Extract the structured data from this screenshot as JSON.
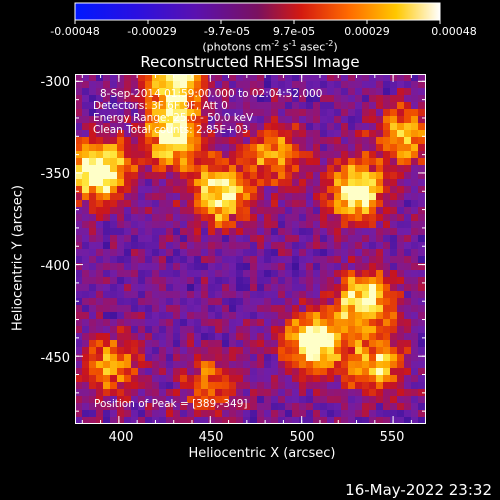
{
  "colorbar": {
    "tick_labels": [
      "-0.00048",
      "-0.00029",
      "-9.7e-05",
      "9.7e-05",
      "0.00029",
      "0.00048"
    ],
    "unit_prefix": "(photons cm",
    "unit_exp1": "-2",
    "unit_mid1": " s",
    "unit_exp2": "-1",
    "unit_mid2": " asec",
    "unit_exp3": "-2",
    "unit_suffix": ")"
  },
  "plot": {
    "title": "Reconstructed RHESSI Image",
    "info_lines": [
      "8-Sep-2014 01:59:00.000 to 02:04:52.000",
      "Detectors: 3F 6F 9F, Att 0",
      "Energy Range: 25.0 - 50.0 keV",
      "Clean    Total counts: 2.85E+03"
    ],
    "peak_label": "Position of Peak = [389,-349]"
  },
  "chart_data": {
    "type": "heatmap",
    "title": "Reconstructed RHESSI Image",
    "xlabel": "Heliocentric X (arcsec)",
    "ylabel": "Heliocentric Y (arcsec)",
    "xlim": [
      376,
      568
    ],
    "ylim": [
      -487,
      -296
    ],
    "x_ticks": [
      "400",
      "450",
      "500",
      "550"
    ],
    "y_ticks": [
      "-300",
      "-350",
      "-400",
      "-450"
    ],
    "x_tick_values": [
      400,
      450,
      500,
      550
    ],
    "y_tick_values": [
      -300,
      -350,
      -400,
      -450
    ],
    "colorbar_range": [
      -0.00048,
      0.00048
    ],
    "peak_position": [
      389,
      -349
    ],
    "hotspots": [
      {
        "x": 389,
        "y": -349,
        "intensity": 1.0
      },
      {
        "x": 430,
        "y": -330,
        "intensity": 0.85
      },
      {
        "x": 455,
        "y": -362,
        "intensity": 0.8
      },
      {
        "x": 530,
        "y": -360,
        "intensity": 0.85
      },
      {
        "x": 507,
        "y": -443,
        "intensity": 0.95
      },
      {
        "x": 535,
        "y": -420,
        "intensity": 0.8
      },
      {
        "x": 430,
        "y": -300,
        "intensity": 0.85
      },
      {
        "x": 485,
        "y": -340,
        "intensity": 0.55
      },
      {
        "x": 555,
        "y": -330,
        "intensity": 0.6
      },
      {
        "x": 395,
        "y": -455,
        "intensity": 0.55
      },
      {
        "x": 450,
        "y": -465,
        "intensity": 0.45
      },
      {
        "x": 540,
        "y": -455,
        "intensity": 0.6
      }
    ],
    "grid": false
  },
  "footer": {
    "timestamp": "16-May-2022 23:32"
  }
}
